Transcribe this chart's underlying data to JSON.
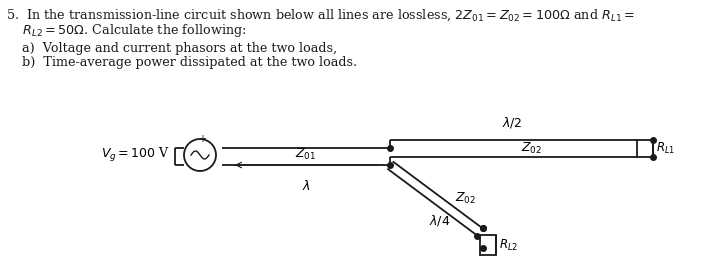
{
  "title_line1": "5.  In the transmission-line circuit shown below all lines are lossless, $2Z_{01} = Z_{02} = 100\\Omega$ and $R_{L1} =$",
  "title_line2": "    $R_{L2} = 50\\Omega$. Calculate the following:",
  "item_a": "    a)  Voltage and current phasors at the two loads,",
  "item_b": "    b)  Time-average power dissipated at the two loads.",
  "bg_color": "#ffffff",
  "line_color": "#1a1a1a",
  "text_color": "#1a1a1a",
  "circuit": {
    "source_label": "$V_g = 100$ V",
    "z01_label": "$Z_{01}$",
    "z02_label_top": "$Z_{02}$",
    "z02_label_diag": "$Z_{02}$",
    "rl1_label": "$R_{L1}$",
    "rl2_label": "$R_{L2}$",
    "lambda_label": "$\\lambda$",
    "lambda2_label": "$\\lambda/2$",
    "lambda4_label": "$\\lambda/4$"
  }
}
